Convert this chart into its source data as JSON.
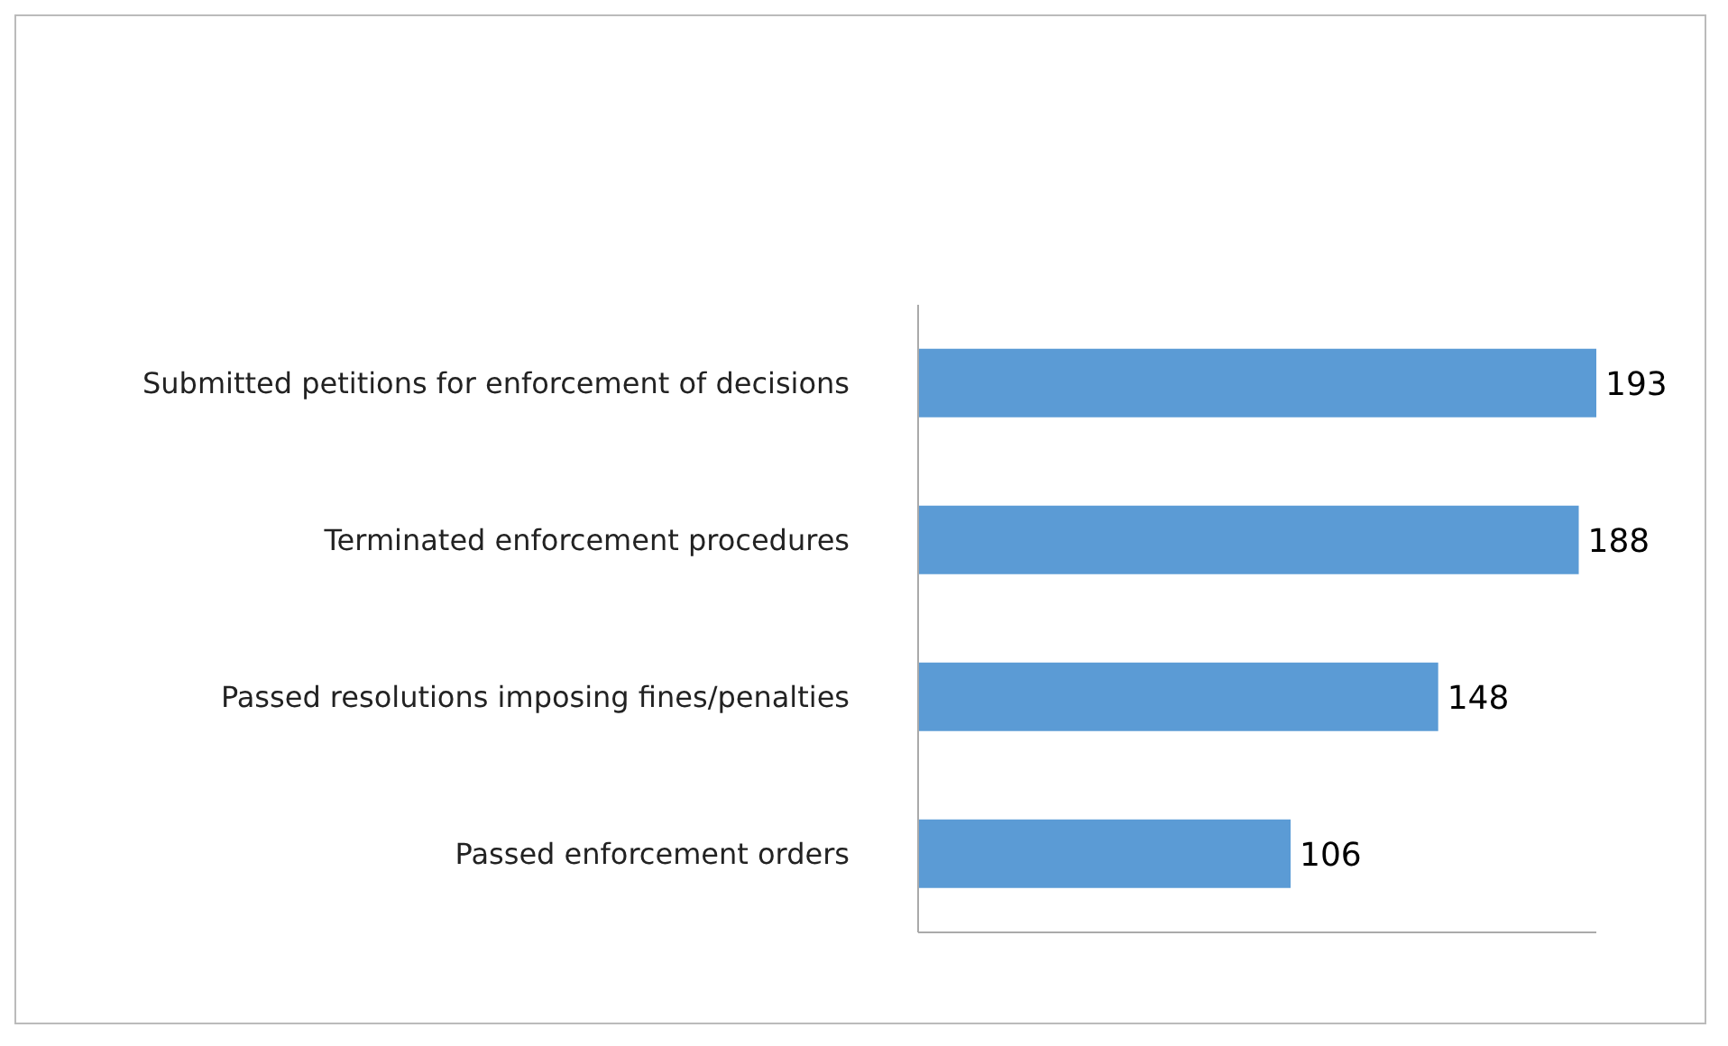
{
  "chart_data": {
    "type": "bar",
    "orientation": "horizontal",
    "relative": false,
    "categories": [
      "Submitted petitions for enforcement of decisions",
      "Terminated enforcement procedures",
      "Passed resolutions imposing fines/penalties",
      "Passed enforcement orders"
    ],
    "values": [
      193,
      188,
      148,
      106
    ],
    "color": "#5b9bd5",
    "data_labels": true
  }
}
